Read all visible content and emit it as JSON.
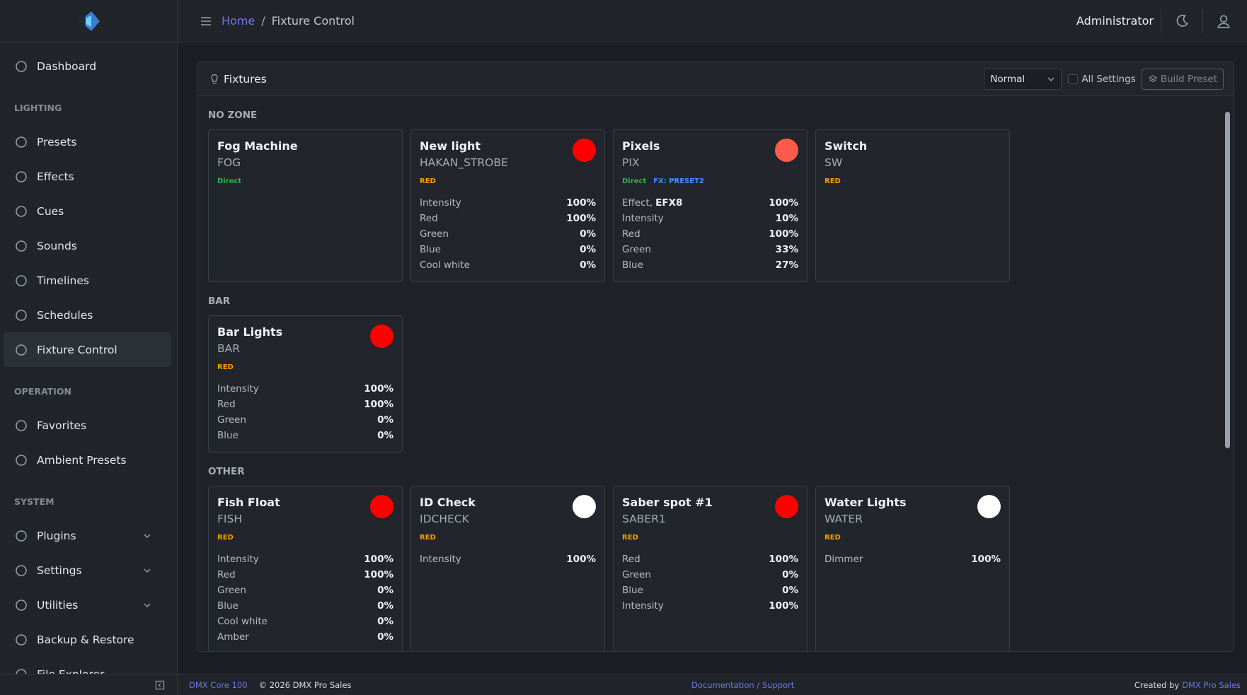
{
  "sidebar": {
    "top": [
      {
        "label": "Dashboard"
      }
    ],
    "sections": [
      {
        "title": "LIGHTING",
        "items": [
          {
            "label": "Presets"
          },
          {
            "label": "Effects"
          },
          {
            "label": "Cues"
          },
          {
            "label": "Sounds"
          },
          {
            "label": "Timelines"
          },
          {
            "label": "Schedules"
          },
          {
            "label": "Fixture Control",
            "active": true
          }
        ]
      },
      {
        "title": "OPERATION",
        "items": [
          {
            "label": "Favorites"
          },
          {
            "label": "Ambient Presets"
          }
        ]
      },
      {
        "title": "SYSTEM",
        "items": [
          {
            "label": "Plugins",
            "expandable": true
          },
          {
            "label": "Settings",
            "expandable": true
          },
          {
            "label": "Utilities",
            "expandable": true
          },
          {
            "label": "Backup & Restore"
          },
          {
            "label": "File Explorer"
          }
        ]
      }
    ]
  },
  "header": {
    "breadcrumb": {
      "home": "Home",
      "separator": "/",
      "current": "Fixture Control"
    },
    "user": "Administrator"
  },
  "panel": {
    "title": "Fixtures",
    "mode": "Normal",
    "checkbox": "All Settings",
    "button": "Build Preset",
    "zones": [
      {
        "name": "NO ZONE",
        "fixtures": [
          {
            "name": "Fog Machine",
            "code": "FOG",
            "tags": [
              {
                "text": "Direct",
                "color": "#2fb344"
              }
            ],
            "params": []
          },
          {
            "name": "New light",
            "code": "HAKAN_STROBE",
            "dot": "#ff0000",
            "tags": [
              {
                "text": "RED",
                "color": "#f59f00"
              }
            ],
            "params": [
              {
                "label": "Intensity",
                "value": "100%"
              },
              {
                "label": "Red",
                "value": "100%"
              },
              {
                "label": "Green",
                "value": "0%"
              },
              {
                "label": "Blue",
                "value": "0%"
              },
              {
                "label": "Cool white",
                "value": "0%"
              }
            ]
          },
          {
            "name": "Pixels",
            "code": "PIX",
            "dot": "#ff5a4a",
            "tags": [
              {
                "text": "Direct",
                "color": "#2fb344"
              },
              {
                "text": "FX: PRESET2",
                "color": "#4a8dff"
              }
            ],
            "params": [
              {
                "label": "Effect,",
                "detail": "EFX8",
                "value": "100%"
              },
              {
                "label": "Intensity",
                "value": "10%"
              },
              {
                "label": "Red",
                "value": "100%"
              },
              {
                "label": "Green",
                "value": "33%"
              },
              {
                "label": "Blue",
                "value": "27%"
              }
            ]
          },
          {
            "name": "Switch",
            "code": "SW",
            "tags": [
              {
                "text": "RED",
                "color": "#f59f00"
              }
            ],
            "params": []
          }
        ]
      },
      {
        "name": "BAR",
        "fixtures": [
          {
            "name": "Bar Lights",
            "code": "BAR",
            "dot": "#ff0000",
            "tags": [
              {
                "text": "RED",
                "color": "#f59f00"
              }
            ],
            "params": [
              {
                "label": "Intensity",
                "value": "100%"
              },
              {
                "label": "Red",
                "value": "100%"
              },
              {
                "label": "Green",
                "value": "0%"
              },
              {
                "label": "Blue",
                "value": "0%"
              }
            ]
          }
        ]
      },
      {
        "name": "OTHER",
        "fixtures": [
          {
            "name": "Fish Float",
            "code": "FISH",
            "dot": "#ff0000",
            "tags": [
              {
                "text": "RED",
                "color": "#f59f00"
              }
            ],
            "params": [
              {
                "label": "Intensity",
                "value": "100%"
              },
              {
                "label": "Red",
                "value": "100%"
              },
              {
                "label": "Green",
                "value": "0%"
              },
              {
                "label": "Blue",
                "value": "0%"
              },
              {
                "label": "Cool white",
                "value": "0%"
              },
              {
                "label": "Amber",
                "value": "0%"
              }
            ]
          },
          {
            "name": "ID Check",
            "code": "IDCHECK",
            "dot": "#ffffff",
            "tags": [
              {
                "text": "RED",
                "color": "#f59f00"
              }
            ],
            "params": [
              {
                "label": "Intensity",
                "value": "100%"
              }
            ]
          },
          {
            "name": "Saber spot #1",
            "code": "SABER1",
            "dot": "#ff0000",
            "tags": [
              {
                "text": "RED",
                "color": "#f59f00"
              }
            ],
            "params": [
              {
                "label": "Red",
                "value": "100%"
              },
              {
                "label": "Green",
                "value": "0%"
              },
              {
                "label": "Blue",
                "value": "0%"
              },
              {
                "label": "Intensity",
                "value": "100%"
              }
            ]
          },
          {
            "name": "Water Lights",
            "code": "WATER",
            "dot": "#ffffff",
            "tags": [
              {
                "text": "RED",
                "color": "#f59f00"
              }
            ],
            "params": [
              {
                "label": "Dimmer",
                "value": "100%"
              }
            ]
          }
        ]
      }
    ]
  },
  "footer": {
    "product": "DMX Core 100",
    "copyright": "© 2026 DMX Pro Sales",
    "support": "Documentation / Support",
    "credit": "Created by",
    "company": "DMX Pro Sales"
  }
}
